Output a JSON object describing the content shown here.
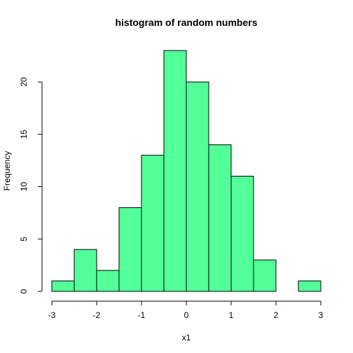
{
  "chart_data": {
    "type": "bar",
    "title": "histogram of random numbers",
    "xlabel": "x1",
    "ylabel": "Frequency",
    "bar_color": "#52FF99",
    "bins": [
      {
        "x0": -3.0,
        "x1": -2.5,
        "count": 1
      },
      {
        "x0": -2.5,
        "x1": -2.0,
        "count": 4
      },
      {
        "x0": -2.0,
        "x1": -1.5,
        "count": 2
      },
      {
        "x0": -1.5,
        "x1": -1.0,
        "count": 8
      },
      {
        "x0": -1.0,
        "x1": -0.5,
        "count": 13
      },
      {
        "x0": -0.5,
        "x1": 0.0,
        "count": 23
      },
      {
        "x0": 0.0,
        "x1": 0.5,
        "count": 20
      },
      {
        "x0": 0.5,
        "x1": 1.0,
        "count": 14
      },
      {
        "x0": 1.0,
        "x1": 1.5,
        "count": 11
      },
      {
        "x0": 1.5,
        "x1": 2.0,
        "count": 3
      },
      {
        "x0": 2.0,
        "x1": 2.5,
        "count": 0
      },
      {
        "x0": 2.5,
        "x1": 3.0,
        "count": 1
      }
    ],
    "x_ticks": [
      -3,
      -2,
      -1,
      0,
      1,
      2,
      3
    ],
    "y_ticks": [
      0,
      5,
      10,
      15,
      20
    ],
    "xlim": [
      -3,
      3
    ],
    "ylim": [
      0,
      23
    ]
  }
}
